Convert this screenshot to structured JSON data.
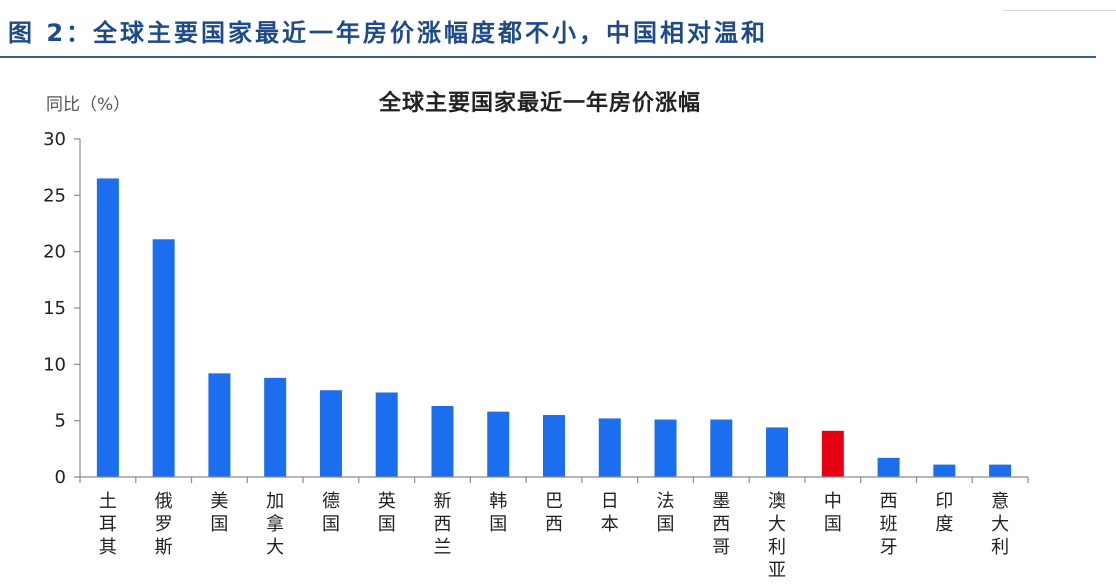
{
  "figure_caption": "图 2：全球主要国家最近一年房价涨幅度都不小，中国相对温和",
  "colors": {
    "caption": "#1d4a8a",
    "caption_rule": "#3b5b92"
  },
  "chart_data": {
    "type": "bar",
    "title": "全球主要国家最近一年房价涨幅",
    "xlabel": "",
    "ylabel": "同比（%）",
    "ylim": [
      0,
      30
    ],
    "yticks": [
      0,
      5,
      10,
      15,
      20,
      25,
      30
    ],
    "grid": false,
    "categories": [
      "土耳其",
      "俄罗斯",
      "美国",
      "加拿大",
      "德国",
      "英国",
      "新西兰",
      "韩国",
      "巴西",
      "日本",
      "法国",
      "墨西哥",
      "澳大利亚",
      "中国",
      "西班牙",
      "印度",
      "意大利"
    ],
    "values": [
      26.5,
      21.1,
      9.2,
      8.8,
      7.7,
      7.5,
      6.3,
      5.8,
      5.5,
      5.2,
      5.1,
      5.1,
      4.4,
      4.1,
      1.7,
      1.1,
      1.1
    ],
    "colors": {
      "bar": "#1b6fef",
      "highlight": "#e60012",
      "axis": "#8c8c8c"
    },
    "highlight_category": "中国"
  }
}
